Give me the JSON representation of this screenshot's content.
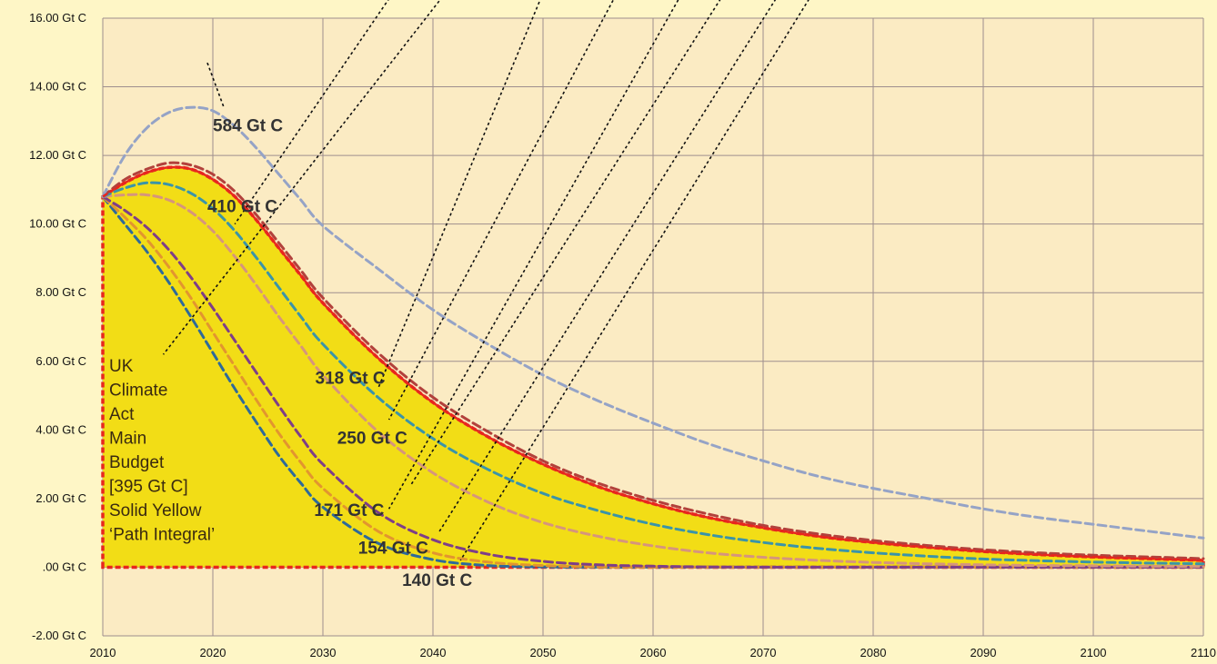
{
  "chart_data": {
    "type": "area",
    "x_ticks": [
      "2010",
      "2020",
      "2030",
      "2040",
      "2050",
      "2060",
      "2070",
      "2080",
      "2090",
      "2100",
      "2110"
    ],
    "y_ticks": [
      "16.00 Gt C",
      "14.00 Gt C",
      "12.00 Gt C",
      "10.00 Gt C",
      "8.00 Gt C",
      "6.00 Gt C",
      "4.00 Gt C",
      "2.00 Gt C",
      ".00 Gt C",
      "-2.00 Gt C"
    ],
    "xlim": [
      2010,
      2110
    ],
    "ylim": [
      -2,
      16
    ],
    "grid": true,
    "colors": {
      "background": "#FEF6C6",
      "plot": "#FBEBC3",
      "grid": "#9E8E8E",
      "fill": "#F2DD16",
      "fill_edge": "#E8261E",
      "pointer": "#111111"
    },
    "filled_series": {
      "label": "UK Climate Act Main Budget [395 Gt C] Solid Yellow ‘Path Integral’",
      "label_lines": [
        "UK",
        "Climate",
        "Act",
        "Main",
        "Budget",
        "[395 Gt C]",
        "Solid Yellow",
        "‘Path Integral’"
      ],
      "x": [
        2010,
        2012,
        2014,
        2016,
        2018,
        2020,
        2022,
        2024,
        2026,
        2028,
        2030,
        2035,
        2040,
        2045,
        2050,
        2055,
        2060,
        2065,
        2070,
        2075,
        2080,
        2085,
        2090,
        2095,
        2100,
        2105,
        2110
      ],
      "values": [
        10.8,
        11.2,
        11.5,
        11.65,
        11.6,
        11.3,
        10.8,
        10.1,
        9.3,
        8.5,
        7.7,
        6.1,
        4.8,
        3.8,
        3.0,
        2.35,
        1.85,
        1.45,
        1.15,
        0.9,
        0.72,
        0.58,
        0.46,
        0.37,
        0.3,
        0.25,
        0.2
      ]
    },
    "series": [
      {
        "total": "584 Gt C",
        "color": "#95A3C6",
        "x": [
          2010,
          2012,
          2014,
          2016,
          2018,
          2020,
          2022,
          2024,
          2026,
          2028,
          2030,
          2035,
          2040,
          2045,
          2050,
          2055,
          2060,
          2065,
          2070,
          2075,
          2080,
          2085,
          2090,
          2095,
          2100,
          2105,
          2110
        ],
        "values": [
          10.8,
          12.0,
          12.8,
          13.25,
          13.4,
          13.3,
          12.85,
          12.2,
          11.45,
          10.7,
          9.95,
          8.7,
          7.5,
          6.5,
          5.6,
          4.85,
          4.2,
          3.6,
          3.1,
          2.65,
          2.3,
          2.0,
          1.7,
          1.45,
          1.25,
          1.05,
          0.85
        ]
      },
      {
        "total": "410 Gt C",
        "color": "#B2413C",
        "x": [
          2010,
          2012,
          2014,
          2016,
          2018,
          2020,
          2022,
          2024,
          2026,
          2028,
          2030,
          2035,
          2040,
          2045,
          2050,
          2055,
          2060,
          2065,
          2070,
          2075,
          2080,
          2085,
          2090,
          2095,
          2100,
          2105,
          2110
        ],
        "values": [
          10.8,
          11.3,
          11.6,
          11.78,
          11.72,
          11.45,
          10.95,
          10.25,
          9.45,
          8.65,
          7.85,
          6.25,
          4.95,
          3.95,
          3.1,
          2.45,
          1.95,
          1.55,
          1.22,
          0.97,
          0.78,
          0.63,
          0.51,
          0.42,
          0.35,
          0.3,
          0.25
        ]
      },
      {
        "total": "318 Gt C",
        "color": "#3B94A8",
        "x": [
          2010,
          2012,
          2014,
          2016,
          2018,
          2020,
          2022,
          2024,
          2026,
          2028,
          2030,
          2035,
          2040,
          2045,
          2050,
          2055,
          2060,
          2065,
          2070,
          2075,
          2080,
          2085,
          2090,
          2095,
          2100,
          2105,
          2110
        ],
        "values": [
          10.8,
          11.05,
          11.2,
          11.15,
          10.9,
          10.45,
          9.8,
          9.0,
          8.15,
          7.3,
          6.5,
          4.95,
          3.75,
          2.85,
          2.15,
          1.65,
          1.25,
          0.95,
          0.72,
          0.55,
          0.42,
          0.32,
          0.24,
          0.19,
          0.15,
          0.12,
          0.1
        ]
      },
      {
        "total": "250 Gt C",
        "color": "#D6957C",
        "x": [
          2010,
          2012,
          2014,
          2016,
          2018,
          2020,
          2022,
          2024,
          2026,
          2028,
          2030,
          2035,
          2040,
          2045,
          2050,
          2055,
          2060,
          2065,
          2070,
          2075,
          2080,
          2085,
          2090,
          2095,
          2100,
          2105,
          2110
        ],
        "values": [
          10.8,
          10.85,
          10.85,
          10.7,
          10.35,
          9.8,
          9.05,
          8.2,
          7.3,
          6.45,
          5.6,
          3.95,
          2.75,
          1.9,
          1.3,
          0.9,
          0.62,
          0.42,
          0.29,
          0.2,
          0.14,
          0.1,
          0.07,
          0.05,
          0.04,
          0.03,
          0.02
        ]
      },
      {
        "total": "171 Gt C",
        "color": "#7E3E88",
        "x": [
          2010,
          2012,
          2014,
          2016,
          2018,
          2020,
          2022,
          2024,
          2026,
          2028,
          2030,
          2035,
          2040,
          2045,
          2050,
          2055,
          2060,
          2065,
          2070,
          2075,
          2080,
          2085,
          2090,
          2095,
          2100,
          2105,
          2110
        ],
        "values": [
          10.8,
          10.4,
          9.9,
          9.25,
          8.45,
          7.55,
          6.6,
          5.65,
          4.7,
          3.8,
          3.0,
          1.6,
          0.8,
          0.38,
          0.17,
          0.07,
          0.03,
          0.01,
          0,
          0,
          0,
          0,
          0,
          0,
          0,
          0,
          0
        ]
      },
      {
        "total": "154 Gt C",
        "color": "#E2952F",
        "x": [
          2010,
          2012,
          2014,
          2016,
          2018,
          2020,
          2022,
          2024,
          2026,
          2028,
          2030,
          2035,
          2040,
          2045,
          2050,
          2055,
          2060,
          2065,
          2070,
          2075,
          2080,
          2085,
          2090,
          2095,
          2100,
          2105,
          2110
        ],
        "values": [
          10.8,
          10.2,
          9.55,
          8.75,
          7.85,
          6.85,
          5.85,
          4.85,
          3.9,
          3.05,
          2.3,
          1.05,
          0.42,
          0.15,
          0.05,
          0.01,
          0,
          0,
          0,
          0,
          0,
          0,
          0,
          0,
          0,
          0,
          0
        ]
      },
      {
        "total": "140 Gt C",
        "color": "#2E6A9A",
        "x": [
          2010,
          2012,
          2014,
          2016,
          2018,
          2020,
          2022,
          2024,
          2026,
          2028,
          2030,
          2035,
          2040,
          2045,
          2050,
          2055,
          2060,
          2065,
          2070,
          2075,
          2080,
          2085,
          2090,
          2095,
          2100,
          2105,
          2110
        ],
        "values": [
          10.8,
          10.0,
          9.2,
          8.3,
          7.3,
          6.25,
          5.2,
          4.2,
          3.25,
          2.45,
          1.75,
          0.7,
          0.22,
          0.05,
          0.01,
          0,
          0,
          0,
          0,
          0,
          0,
          0,
          0,
          0,
          0,
          0,
          0
        ]
      }
    ],
    "annotations": [
      "584 Gt C",
      "410 Gt C",
      "318 Gt C",
      "250 Gt C",
      "171 Gt C",
      "154 Gt C",
      "140 Gt C"
    ]
  }
}
